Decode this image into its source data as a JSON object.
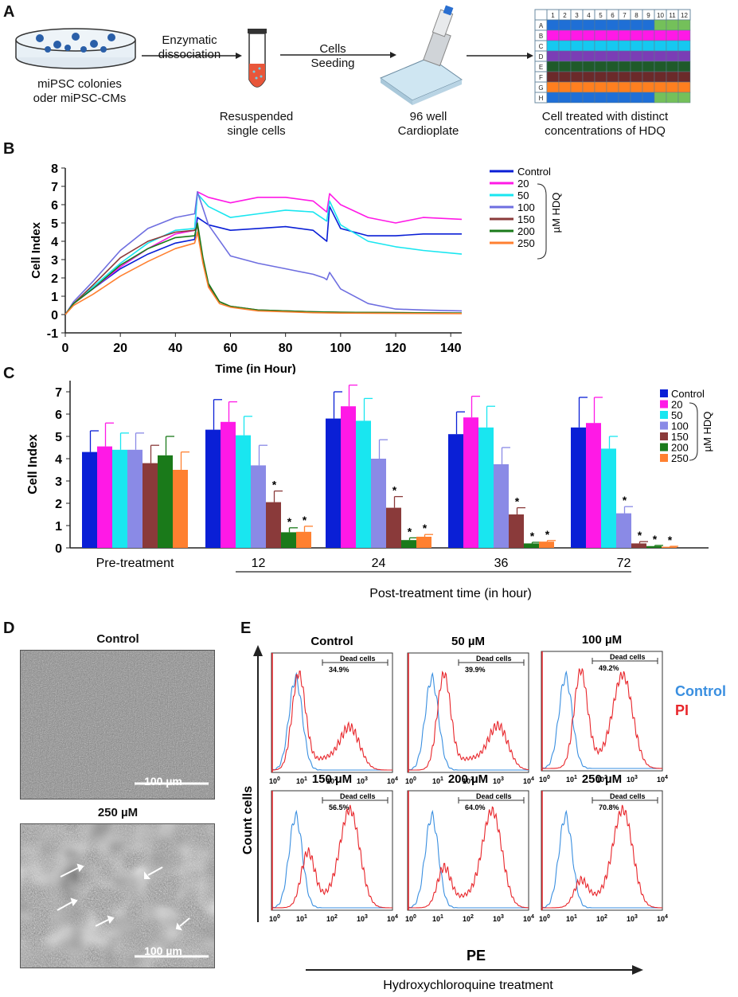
{
  "panels": {
    "a": "A",
    "b": "B",
    "c": "C",
    "d": "D",
    "e": "E"
  },
  "panel_a": {
    "colonies": [
      "miPSC colonies",
      "oder miPSC-CMs"
    ],
    "step1": [
      "Enzymatic",
      "dissociation"
    ],
    "tube_label": [
      "Resuspended",
      "single cells"
    ],
    "step2": [
      "Cells",
      "Seeding"
    ],
    "plate_label": [
      "96 well",
      "Cardioplate"
    ],
    "result_label": [
      "Cell treated with distinct",
      "concentrations of HDQ"
    ],
    "plate_cols": [
      "1",
      "2",
      "3",
      "4",
      "5",
      "6",
      "7",
      "8",
      "9",
      "10",
      "11",
      "12"
    ],
    "plate_rows": [
      "A",
      "B",
      "C",
      "D",
      "E",
      "F",
      "G",
      "H"
    ],
    "row_colors": [
      "#1f6fd6",
      "#ff19e6",
      "#16c8f0",
      "#7b3db5",
      "#1f5a2a",
      "#6b2a2a",
      "#ff7f1f",
      "#1f6fd6"
    ],
    "extra_color": "#74c05a"
  },
  "chart_data": [
    {
      "type": "line",
      "title": "",
      "xlabel": "Time (in Hour)",
      "ylabel": "Cell Index",
      "xlim": [
        0,
        144
      ],
      "ylim": [
        -1,
        8
      ],
      "xticks": [
        0,
        20,
        40,
        60,
        80,
        100,
        120,
        140
      ],
      "yticks": [
        -1,
        0,
        1,
        2,
        3,
        4,
        5,
        6,
        7,
        8
      ],
      "legend_title": "µM HDQ",
      "legend_position": "top-right",
      "series": [
        {
          "name": "Control",
          "color": "#0a1fd6",
          "x": [
            0,
            3,
            10,
            20,
            30,
            40,
            47,
            48,
            52,
            60,
            70,
            80,
            90,
            95,
            96,
            100,
            110,
            120,
            130,
            144
          ],
          "y": [
            0,
            0.6,
            1.4,
            2.5,
            3.3,
            3.9,
            4.1,
            5.3,
            4.9,
            4.6,
            4.7,
            4.8,
            4.6,
            4.0,
            5.9,
            4.7,
            4.3,
            4.3,
            4.4,
            4.4
          ]
        },
        {
          "name": "20",
          "color": "#ff19e6",
          "x": [
            0,
            3,
            10,
            20,
            30,
            40,
            47,
            48,
            52,
            60,
            70,
            80,
            90,
            95,
            96,
            100,
            110,
            120,
            130,
            144
          ],
          "y": [
            0,
            0.6,
            1.4,
            2.6,
            3.6,
            4.4,
            4.6,
            6.7,
            6.4,
            6.1,
            6.4,
            6.4,
            6.2,
            5.6,
            6.6,
            6.0,
            5.3,
            5.0,
            5.3,
            5.2
          ]
        },
        {
          "name": "50",
          "color": "#19e6f0",
          "x": [
            0,
            3,
            10,
            20,
            30,
            40,
            47,
            48,
            52,
            60,
            70,
            80,
            90,
            95,
            96,
            100,
            110,
            120,
            130,
            144
          ],
          "y": [
            0,
            0.6,
            1.5,
            2.8,
            3.9,
            4.6,
            4.7,
            6.6,
            5.9,
            5.3,
            5.5,
            5.7,
            5.6,
            5.1,
            6.2,
            4.9,
            4.0,
            3.7,
            3.5,
            3.3
          ]
        },
        {
          "name": "100",
          "color": "#6e6ee0",
          "x": [
            0,
            3,
            10,
            20,
            30,
            40,
            47,
            48,
            52,
            60,
            70,
            80,
            90,
            94,
            95,
            96,
            100,
            110,
            120,
            130,
            144
          ],
          "y": [
            0,
            0.7,
            1.8,
            3.5,
            4.7,
            5.3,
            5.5,
            6.7,
            4.9,
            3.2,
            2.8,
            2.5,
            2.2,
            2.0,
            1.9,
            2.3,
            1.4,
            0.6,
            0.3,
            0.25,
            0.2
          ]
        },
        {
          "name": "150",
          "color": "#8a3a3a",
          "x": [
            0,
            3,
            10,
            20,
            30,
            40,
            47,
            48,
            50,
            52,
            56,
            60,
            70,
            90,
            100,
            144
          ],
          "y": [
            0,
            0.6,
            1.6,
            3.1,
            4.0,
            4.5,
            4.6,
            4.8,
            3.0,
            1.6,
            0.7,
            0.45,
            0.25,
            0.15,
            0.12,
            0.08
          ]
        },
        {
          "name": "200",
          "color": "#1a7a1a",
          "x": [
            0,
            3,
            10,
            20,
            30,
            40,
            47,
            48,
            50,
            52,
            56,
            60,
            70,
            90,
            100,
            144
          ],
          "y": [
            0,
            0.6,
            1.4,
            2.7,
            3.6,
            4.2,
            4.3,
            5.0,
            3.1,
            1.7,
            0.7,
            0.45,
            0.25,
            0.15,
            0.12,
            0.08
          ]
        },
        {
          "name": "250",
          "color": "#ff8030",
          "x": [
            0,
            3,
            10,
            20,
            30,
            40,
            47,
            48,
            50,
            52,
            56,
            60,
            70,
            90,
            100,
            144
          ],
          "y": [
            0,
            0.5,
            1.1,
            2.1,
            2.9,
            3.6,
            3.9,
            4.5,
            2.8,
            1.5,
            0.6,
            0.4,
            0.2,
            0.1,
            0.08,
            0.05
          ]
        }
      ]
    },
    {
      "type": "bar",
      "title": "",
      "xlabel": "Post-treatment time (in hour)",
      "ylabel": "Cell Index",
      "ylim": [
        0,
        7.5
      ],
      "yticks": [
        0,
        1,
        2,
        3,
        4,
        5,
        6,
        7
      ],
      "categories": [
        "Pre-treatment",
        "12",
        "24",
        "36",
        "72"
      ],
      "legend_title": "µM HDQ",
      "legend_position": "top-right",
      "significance_marker": "*",
      "series": [
        {
          "name": "Control",
          "color": "#0a1fd6",
          "values": [
            4.3,
            5.3,
            5.8,
            5.1,
            5.4
          ],
          "errors": [
            0.95,
            1.35,
            1.2,
            1.0,
            1.35
          ],
          "sig": [
            false,
            false,
            false,
            false,
            false
          ]
        },
        {
          "name": "20",
          "color": "#ff19e6",
          "values": [
            4.55,
            5.65,
            6.35,
            5.85,
            5.6
          ],
          "errors": [
            1.05,
            0.9,
            0.95,
            0.95,
            1.15
          ],
          "sig": [
            false,
            false,
            false,
            false,
            false
          ]
        },
        {
          "name": "50",
          "color": "#19e6f0",
          "values": [
            4.4,
            5.05,
            5.7,
            5.4,
            4.45
          ],
          "errors": [
            0.75,
            0.85,
            1.0,
            0.95,
            0.55
          ],
          "sig": [
            false,
            false,
            false,
            false,
            false
          ]
        },
        {
          "name": "100",
          "color": "#8a8ae6",
          "values": [
            4.4,
            3.7,
            4.0,
            3.75,
            1.55
          ],
          "errors": [
            0.75,
            0.9,
            0.85,
            0.75,
            0.3
          ],
          "sig": [
            false,
            false,
            false,
            false,
            true
          ]
        },
        {
          "name": "150",
          "color": "#8a3a3a",
          "values": [
            3.8,
            2.05,
            1.8,
            1.5,
            0.2
          ],
          "errors": [
            0.8,
            0.5,
            0.5,
            0.3,
            0.08
          ],
          "sig": [
            false,
            true,
            true,
            true,
            true
          ]
        },
        {
          "name": "200",
          "color": "#1a7a1a",
          "values": [
            4.15,
            0.7,
            0.35,
            0.2,
            0.08
          ],
          "errors": [
            0.85,
            0.2,
            0.1,
            0.05,
            0.03
          ],
          "sig": [
            false,
            true,
            true,
            true,
            true
          ]
        },
        {
          "name": "250",
          "color": "#ff8030",
          "values": [
            3.5,
            0.72,
            0.5,
            0.28,
            0.05
          ],
          "errors": [
            0.8,
            0.25,
            0.1,
            0.05,
            0.02
          ],
          "sig": [
            false,
            true,
            true,
            true,
            true
          ]
        }
      ]
    },
    {
      "type": "histogram",
      "xlabel": "PE",
      "ylabel": "Count cells",
      "xscale": "log",
      "xticks": [
        "10^0",
        "10^1",
        "10^2",
        "10^3",
        "10^4"
      ],
      "legend": [
        {
          "name": "Control",
          "color": "#3a8fe0"
        },
        {
          "name": "PI",
          "color": "#e8262b"
        }
      ],
      "gate_label": "Dead cells",
      "treatment_label": "Hydroxychloroquine treatment",
      "panels": [
        {
          "title": "Control",
          "dead_percent": "34.9%",
          "red_peaks": [
            [
              0.9,
              1.0
            ],
            [
              2.6,
              0.43
            ]
          ]
        },
        {
          "title": "50 µM",
          "dead_percent": "39.9%",
          "red_peaks": [
            [
              1.2,
              1.0
            ],
            [
              3.0,
              0.45
            ]
          ]
        },
        {
          "title": "100 µM",
          "dead_percent": "49.2%",
          "red_peaks": [
            [
              1.3,
              1.0
            ],
            [
              2.7,
              0.95
            ]
          ]
        },
        {
          "title": "150 µM",
          "dead_percent": "56.5%",
          "red_peaks": [
            [
              1.2,
              0.55
            ],
            [
              2.6,
              1.0
            ]
          ]
        },
        {
          "title": "200 µM",
          "dead_percent": "64.0%",
          "red_peaks": [
            [
              1.2,
              0.4
            ],
            [
              2.8,
              1.0
            ]
          ]
        },
        {
          "title": "250 µM",
          "dead_percent": "70.8%",
          "red_peaks": [
            [
              1.3,
              0.25
            ],
            [
              2.7,
              1.0
            ]
          ]
        }
      ]
    }
  ],
  "panel_d": {
    "top_title": "Control",
    "bottom_title": "250 µM",
    "scale_bar": "100  µm"
  }
}
